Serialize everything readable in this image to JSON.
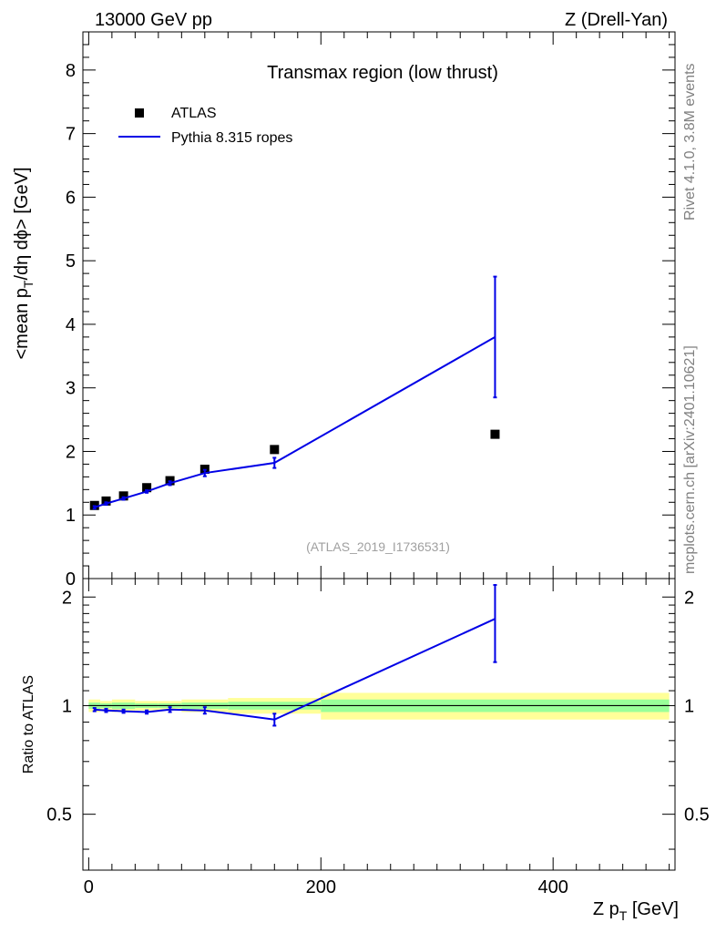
{
  "header": {
    "left": "13000 GeV pp",
    "right": "Z (Drell-Yan)"
  },
  "side_text": {
    "rivet": "Rivet 4.1.0,  3.8M events",
    "source": "mcplots.cern.ch [arXiv:2401.10621]"
  },
  "chart_data": [
    {
      "type": "scatter",
      "title": "Transmax region (low thrust)",
      "analysis_id": "(ATLAS_2019_I1736531)",
      "ylabel": "<mean p_T/dη dϕ> [GeV]",
      "ylabel_parts": {
        "main": "<mean p",
        "sub": "T",
        "rest": "/dη dϕ> [GeV]"
      },
      "xlim": [
        -5,
        505
      ],
      "ylim": [
        0,
        8.6
      ],
      "y_ticks": [
        0,
        1,
        2,
        3,
        4,
        5,
        6,
        7,
        8
      ],
      "y_tick_labels": [
        "0",
        "1",
        "2",
        "3",
        "4",
        "5",
        "6",
        "7",
        "8"
      ],
      "legend": [
        {
          "label": "ATLAS",
          "marker": "square",
          "color": "#000000"
        },
        {
          "label": "Pythia 8.315 ropes",
          "marker": "line",
          "color": "#0000e6"
        }
      ],
      "series": [
        {
          "name": "ATLAS",
          "x": [
            5,
            15,
            30,
            50,
            70,
            100,
            160,
            350
          ],
          "y": [
            1.15,
            1.22,
            1.3,
            1.43,
            1.54,
            1.72,
            2.03,
            2.27
          ]
        },
        {
          "name": "Pythia 8.315 ropes",
          "x": [
            5,
            15,
            30,
            50,
            70,
            100,
            160,
            350
          ],
          "y": [
            1.12,
            1.18,
            1.26,
            1.37,
            1.5,
            1.66,
            1.82,
            3.8
          ],
          "err": [
            0.02,
            0.02,
            0.02,
            0.02,
            0.03,
            0.05,
            0.08,
            0.95
          ]
        }
      ]
    },
    {
      "type": "scatter",
      "ylabel": "Ratio to ATLAS",
      "xlabel_parts": {
        "main": "Z p",
        "sub": "T",
        "rest": " [GeV]"
      },
      "xlim": [
        -5,
        505
      ],
      "ylim": [
        0.35,
        2.25
      ],
      "x_ticks": [
        0,
        200,
        400
      ],
      "x_tick_labels": [
        "0",
        "200",
        "400"
      ],
      "y_ticks": [
        0.5,
        1,
        2
      ],
      "y_tick_labels": [
        "0.5",
        "1",
        "2"
      ],
      "bands": [
        {
          "x0": 0,
          "x1": 10,
          "outer": 0.04,
          "inner": 0.02
        },
        {
          "x0": 10,
          "x1": 20,
          "outer": 0.03,
          "inner": 0.015
        },
        {
          "x0": 20,
          "x1": 40,
          "outer": 0.04,
          "inner": 0.02
        },
        {
          "x0": 40,
          "x1": 60,
          "outer": 0.03,
          "inner": 0.015
        },
        {
          "x0": 60,
          "x1": 80,
          "outer": 0.03,
          "inner": 0.015
        },
        {
          "x0": 80,
          "x1": 120,
          "outer": 0.04,
          "inner": 0.02
        },
        {
          "x0": 120,
          "x1": 200,
          "outer": 0.05,
          "inner": 0.025
        },
        {
          "x0": 200,
          "x1": 500,
          "outer": 0.085,
          "inner": 0.04
        }
      ],
      "series": [
        {
          "name": "Pythia 8.315 ropes / ATLAS",
          "x": [
            5,
            15,
            30,
            50,
            70,
            100,
            160,
            350
          ],
          "y": [
            0.975,
            0.97,
            0.965,
            0.96,
            0.975,
            0.97,
            0.915,
            1.74
          ],
          "err": [
            0.01,
            0.01,
            0.01,
            0.01,
            0.015,
            0.02,
            0.035,
            0.42
          ]
        }
      ]
    }
  ]
}
